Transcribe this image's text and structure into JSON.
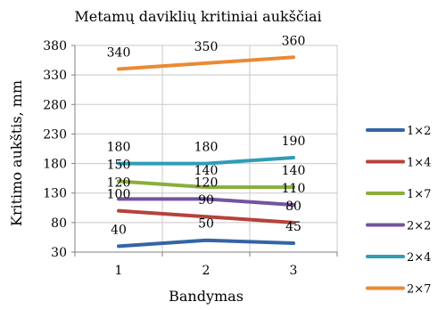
{
  "chart_data": {
    "type": "line",
    "title": "Metamų daviklių kritiniai aukščiai",
    "xlabel": "Bandymas",
    "ylabel": "Kritimo aukštis, mm",
    "categories": [
      "1",
      "2",
      "3"
    ],
    "yticks": [
      "30",
      "80",
      "130",
      "180",
      "230",
      "280",
      "330",
      "380"
    ],
    "ylim": [
      30,
      380
    ],
    "grid": true,
    "legend_position": "right",
    "series": [
      {
        "name": "1×2",
        "color": "#3465a4",
        "values": [
          40,
          50,
          45
        ],
        "labels": [
          "40",
          "50",
          "45"
        ]
      },
      {
        "name": "1×4",
        "color": "#b5423b",
        "values": [
          100,
          90,
          80
        ],
        "labels": [
          "100",
          "90",
          "80"
        ]
      },
      {
        "name": "1×7",
        "color": "#8aae3d",
        "values": [
          150,
          140,
          140
        ],
        "labels": [
          "150",
          "140",
          "140"
        ]
      },
      {
        "name": "2×2",
        "color": "#7354a0",
        "values": [
          120,
          120,
          110
        ],
        "labels": [
          "120",
          "120",
          "110"
        ]
      },
      {
        "name": "2×4",
        "color": "#2f9db5",
        "values": [
          180,
          180,
          190
        ],
        "labels": [
          "180",
          "180",
          "190"
        ]
      },
      {
        "name": "2×7",
        "color": "#ea8a35",
        "values": [
          340,
          350,
          360
        ],
        "labels": [
          "340",
          "350",
          "360"
        ]
      }
    ]
  }
}
